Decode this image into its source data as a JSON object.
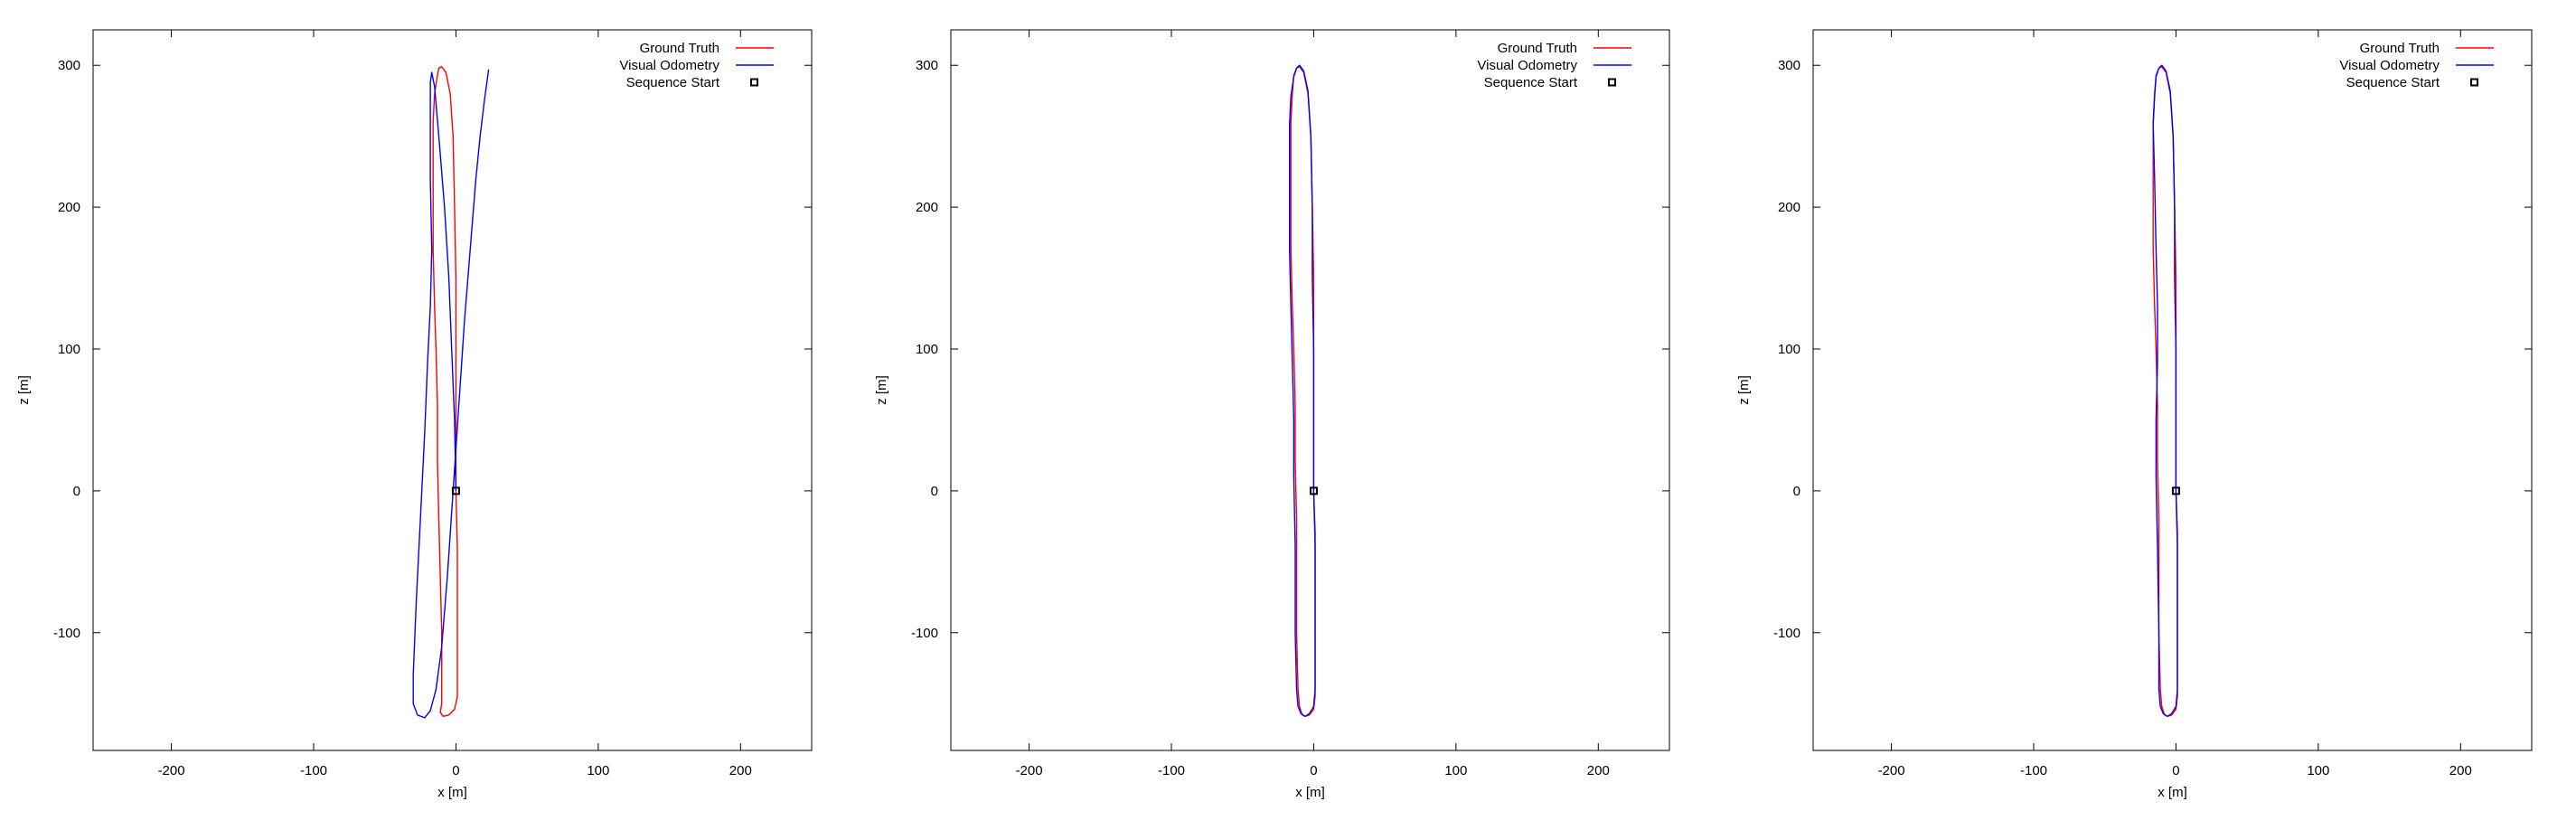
{
  "chart_data": [
    {
      "type": "line",
      "xlabel": "x [m]",
      "ylabel": "z [m]",
      "xlim": [
        -255,
        250
      ],
      "ylim": [
        -183,
        325
      ],
      "xticks": [
        -200,
        -100,
        0,
        100,
        200
      ],
      "yticks": [
        -100,
        0,
        100,
        200,
        300
      ],
      "grid": false,
      "legend_position": "top-right",
      "legend": [
        {
          "label": "Ground Truth",
          "color": "#ff0000",
          "style": "line"
        },
        {
          "label": "Visual Odometry",
          "color": "#0000ff",
          "style": "line"
        },
        {
          "label": "Sequence Start",
          "color": "#000000",
          "style": "square"
        }
      ],
      "series": [
        {
          "name": "Ground Truth",
          "color": "#ff0000",
          "x": [
            0,
            0,
            0,
            0,
            -1,
            -2,
            -4,
            -7,
            -10,
            -12,
            -13,
            -15,
            -16,
            -16,
            -16,
            -15,
            -14,
            -13,
            -13,
            -12,
            -11,
            -10,
            -10,
            -10,
            -11,
            -9,
            -5,
            -1,
            1,
            1,
            1,
            1,
            0
          ],
          "z": [
            0,
            50,
            100,
            150,
            200,
            250,
            280,
            295,
            299,
            298,
            293,
            280,
            260,
            220,
            170,
            130,
            100,
            60,
            20,
            -20,
            -60,
            -100,
            -140,
            -150,
            -156,
            -159,
            -158,
            -154,
            -145,
            -120,
            -80,
            -40,
            0
          ]
        },
        {
          "name": "Visual Odometry",
          "color": "#0000ff",
          "x": [
            0,
            -1,
            -3,
            -5,
            -8,
            -12,
            -15,
            -17,
            -18,
            -18,
            -18,
            -17,
            -18,
            -20,
            -22,
            -25,
            -28,
            -30,
            -30,
            -27,
            -22,
            -18,
            -14,
            -10,
            -6,
            -2,
            2,
            6,
            10,
            14,
            17,
            20,
            22,
            23
          ],
          "z": [
            0,
            50,
            100,
            150,
            200,
            250,
            285,
            295,
            288,
            270,
            220,
            170,
            130,
            90,
            40,
            -20,
            -80,
            -130,
            -150,
            -158,
            -160,
            -155,
            -140,
            -110,
            -60,
            0,
            60,
            120,
            170,
            220,
            250,
            275,
            290,
            297
          ]
        },
        {
          "name": "Sequence Start",
          "color": "#000000",
          "x": [
            0
          ],
          "z": [
            0
          ]
        }
      ]
    },
    {
      "type": "line",
      "xlabel": "x [m]",
      "ylabel": "z [m]",
      "xlim": [
        -255,
        250
      ],
      "ylim": [
        -183,
        325
      ],
      "xticks": [
        -200,
        -100,
        0,
        100,
        200
      ],
      "yticks": [
        -100,
        0,
        100,
        200,
        300
      ],
      "grid": false,
      "legend_position": "top-right",
      "legend": [
        {
          "label": "Ground Truth",
          "color": "#ff0000",
          "style": "line"
        },
        {
          "label": "Visual Odometry",
          "color": "#0000ff",
          "style": "line"
        },
        {
          "label": "Sequence Start",
          "color": "#000000",
          "style": "square"
        }
      ],
      "series": [
        {
          "name": "Ground Truth",
          "color": "#ff0000",
          "x": [
            0,
            0,
            0,
            0,
            -1,
            -2,
            -4,
            -7,
            -10,
            -12,
            -14,
            -15,
            -16,
            -16,
            -16,
            -15,
            -14,
            -13,
            -13,
            -12,
            -12,
            -12,
            -11,
            -10,
            -8,
            -6,
            -3,
            0,
            1,
            1,
            1,
            1,
            0
          ],
          "z": [
            0,
            50,
            100,
            150,
            200,
            250,
            280,
            295,
            299,
            298,
            293,
            280,
            260,
            220,
            170,
            130,
            100,
            60,
            20,
            -20,
            -60,
            -100,
            -140,
            -152,
            -158,
            -159,
            -158,
            -154,
            -145,
            -120,
            -80,
            -40,
            0
          ]
        },
        {
          "name": "Visual Odometry",
          "color": "#0000ff",
          "x": [
            0,
            0,
            0,
            -1,
            -1,
            -2,
            -4,
            -7,
            -10,
            -12,
            -14,
            -16,
            -17,
            -17,
            -17,
            -16,
            -15,
            -14,
            -14,
            -13,
            -13,
            -12,
            -11,
            -9,
            -6,
            -3,
            0,
            1,
            1,
            1,
            1,
            0
          ],
          "z": [
            0,
            50,
            100,
            150,
            200,
            250,
            282,
            296,
            300,
            298,
            292,
            278,
            258,
            220,
            170,
            130,
            90,
            50,
            10,
            -40,
            -100,
            -140,
            -152,
            -157,
            -159,
            -157,
            -152,
            -140,
            -110,
            -70,
            -30,
            0
          ]
        },
        {
          "name": "Sequence Start",
          "color": "#000000",
          "x": [
            0
          ],
          "z": [
            0
          ]
        }
      ]
    },
    {
      "type": "line",
      "xlabel": "x [m]",
      "ylabel": "z [m]",
      "xlim": [
        -255,
        250
      ],
      "ylim": [
        -183,
        325
      ],
      "xticks": [
        -200,
        -100,
        0,
        100,
        200
      ],
      "yticks": [
        -100,
        0,
        100,
        200,
        300
      ],
      "grid": false,
      "legend_position": "top-right",
      "legend": [
        {
          "label": "Ground Truth",
          "color": "#ff0000",
          "style": "line"
        },
        {
          "label": "Visual Odometry",
          "color": "#0000ff",
          "style": "line"
        },
        {
          "label": "Sequence Start",
          "color": "#000000",
          "style": "square"
        }
      ],
      "series": [
        {
          "name": "Ground Truth",
          "color": "#ff0000",
          "x": [
            0,
            0,
            0,
            0,
            -1,
            -2,
            -4,
            -7,
            -10,
            -12,
            -14,
            -15,
            -16,
            -16,
            -16,
            -15,
            -14,
            -13,
            -13,
            -12,
            -12,
            -12,
            -11,
            -10,
            -8,
            -6,
            -3,
            0,
            1,
            1,
            1,
            1,
            0
          ],
          "z": [
            0,
            50,
            100,
            150,
            200,
            250,
            280,
            295,
            299,
            298,
            293,
            280,
            260,
            220,
            170,
            130,
            100,
            60,
            20,
            -20,
            -60,
            -100,
            -140,
            -152,
            -158,
            -159,
            -158,
            -154,
            -145,
            -120,
            -80,
            -40,
            0
          ]
        },
        {
          "name": "Visual Odometry",
          "color": "#0000ff",
          "x": [
            0,
            0,
            0,
            -1,
            -1,
            -2,
            -4,
            -7,
            -10,
            -12,
            -14,
            -15,
            -16,
            -15,
            -14,
            -13,
            -13,
            -14,
            -14,
            -13,
            -12,
            -12,
            -11,
            -9,
            -6,
            -3,
            0,
            1,
            1,
            1,
            1,
            0
          ],
          "z": [
            0,
            50,
            100,
            150,
            200,
            250,
            282,
            296,
            300,
            298,
            292,
            278,
            258,
            220,
            170,
            130,
            90,
            50,
            10,
            -40,
            -100,
            -140,
            -152,
            -157,
            -159,
            -157,
            -152,
            -140,
            -110,
            -70,
            -30,
            0
          ]
        },
        {
          "name": "Sequence Start",
          "color": "#000000",
          "x": [
            0
          ],
          "z": [
            0
          ]
        }
      ]
    }
  ]
}
